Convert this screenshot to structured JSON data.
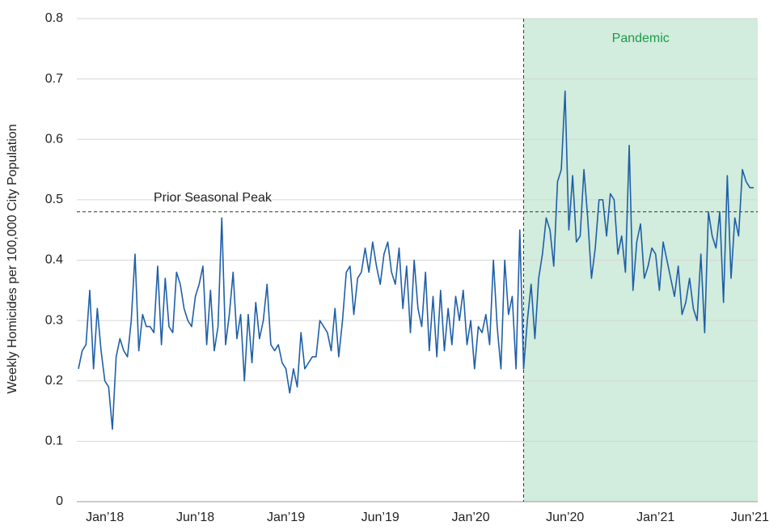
{
  "chart_data": {
    "type": "line",
    "y_axis_label": "Weekly Homicides per 100,000 City Population",
    "color": "#1f5fa8",
    "categories": [
      null,
      null,
      null,
      null,
      null,
      null,
      null,
      "Jan’18",
      null,
      null,
      null,
      null,
      null,
      null,
      null,
      null,
      null,
      null,
      null,
      null,
      null,
      null,
      null,
      null,
      null,
      null,
      null,
      null,
      null,
      null,
      null,
      "Jun’18",
      null,
      null,
      null,
      null,
      null,
      null,
      null,
      null,
      null,
      null,
      null,
      null,
      null,
      null,
      null,
      null,
      null,
      null,
      null,
      null,
      null,
      null,
      null,
      "Jan’19",
      null,
      null,
      null,
      null,
      null,
      null,
      null,
      null,
      null,
      null,
      null,
      null,
      null,
      null,
      null,
      null,
      null,
      null,
      null,
      null,
      null,
      null,
      null,
      null,
      "Jun’19",
      null,
      null,
      null,
      null,
      null,
      null,
      null,
      null,
      null,
      null,
      null,
      null,
      null,
      null,
      null,
      null,
      null,
      null,
      null,
      null,
      null,
      null,
      null,
      "Jan’20",
      null,
      null,
      null,
      null,
      null,
      null,
      null,
      null,
      null,
      null,
      null,
      null,
      null,
      null,
      null,
      null,
      null,
      null,
      null,
      null,
      null,
      null,
      null,
      null,
      "Jun’20",
      null,
      null,
      null,
      null,
      null,
      null,
      null,
      null,
      null,
      null,
      null,
      null,
      null,
      null,
      null,
      null,
      null,
      null,
      null,
      null,
      null,
      null,
      null,
      "Jan’21",
      null,
      null,
      null,
      null,
      null,
      null,
      null,
      null,
      null,
      null,
      null,
      null,
      null,
      null,
      null,
      null,
      null,
      null,
      null,
      null,
      null,
      null,
      null,
      null,
      "Jun’21",
      null
    ],
    "values": [
      0.22,
      0.25,
      0.26,
      0.35,
      0.22,
      0.32,
      0.25,
      0.2,
      0.19,
      0.12,
      0.24,
      0.27,
      0.25,
      0.24,
      0.3,
      0.41,
      0.25,
      0.31,
      0.29,
      0.29,
      0.28,
      0.39,
      0.26,
      0.37,
      0.29,
      0.28,
      0.38,
      0.36,
      0.32,
      0.3,
      0.29,
      0.34,
      0.36,
      0.39,
      0.26,
      0.35,
      0.25,
      0.29,
      0.47,
      0.26,
      0.31,
      0.38,
      0.27,
      0.31,
      0.2,
      0.31,
      0.23,
      0.33,
      0.27,
      0.3,
      0.36,
      0.26,
      0.25,
      0.26,
      0.23,
      0.22,
      0.18,
      0.22,
      0.19,
      0.28,
      0.22,
      0.23,
      0.24,
      0.24,
      0.3,
      0.29,
      0.28,
      0.25,
      0.32,
      0.24,
      0.3,
      0.38,
      0.39,
      0.31,
      0.37,
      0.38,
      0.42,
      0.38,
      0.43,
      0.39,
      0.36,
      0.41,
      0.43,
      0.38,
      0.36,
      0.42,
      0.32,
      0.39,
      0.28,
      0.4,
      0.32,
      0.29,
      0.38,
      0.25,
      0.34,
      0.24,
      0.35,
      0.25,
      0.32,
      0.26,
      0.34,
      0.3,
      0.35,
      0.26,
      0.3,
      0.22,
      0.29,
      0.28,
      0.31,
      0.26,
      0.4,
      0.29,
      0.22,
      0.4,
      0.31,
      0.34,
      0.22,
      0.45,
      0.22,
      0.3,
      0.36,
      0.27,
      0.37,
      0.41,
      0.47,
      0.45,
      0.39,
      0.53,
      0.55,
      0.68,
      0.45,
      0.54,
      0.43,
      0.44,
      0.55,
      0.47,
      0.37,
      0.42,
      0.5,
      0.5,
      0.44,
      0.51,
      0.5,
      0.41,
      0.44,
      0.38,
      0.59,
      0.35,
      0.43,
      0.46,
      0.37,
      0.39,
      0.42,
      0.41,
      0.35,
      0.43,
      0.4,
      0.37,
      0.34,
      0.39,
      0.31,
      0.33,
      0.37,
      0.32,
      0.3,
      0.41,
      0.28,
      0.48,
      0.44,
      0.42,
      0.48,
      0.33,
      0.54,
      0.37,
      0.47,
      0.44,
      0.55,
      0.53,
      0.52,
      0.52
    ],
    "ylim": [
      0,
      0.8
    ],
    "yticks": [
      0,
      0.1,
      0.2,
      0.3,
      0.4,
      0.5,
      0.6,
      0.7,
      0.8
    ],
    "grid": true,
    "reference_line": {
      "value": 0.48,
      "label": "Prior Seasonal Peak"
    },
    "shade": {
      "label": "Pandemic",
      "from_index": 118,
      "color": "#d2ecdd",
      "label_color": "#1e9a4c"
    }
  }
}
